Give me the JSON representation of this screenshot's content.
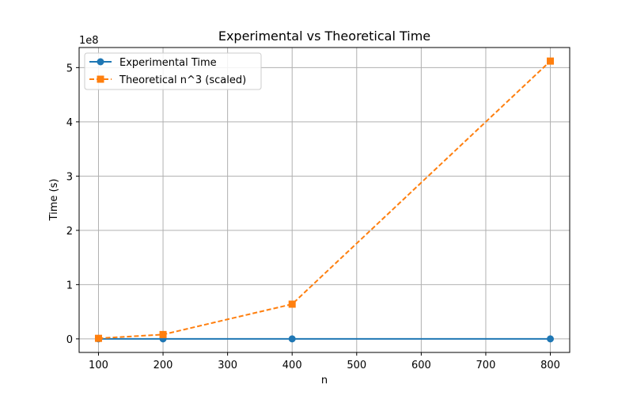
{
  "chart_data": {
    "type": "line",
    "title": "Experimental vs Theoretical Time",
    "xlabel": "n",
    "ylabel": "Time (s)",
    "y_offset_label": "1e8",
    "xlim": [
      70,
      830
    ],
    "ylim": [
      -25000000,
      537000000
    ],
    "x_ticks": [
      100,
      200,
      300,
      400,
      500,
      600,
      700,
      800
    ],
    "y_ticks": [
      0,
      100000000,
      200000000,
      300000000,
      400000000,
      500000000
    ],
    "y_tick_labels": [
      "0",
      "1",
      "2",
      "3",
      "4",
      "5"
    ],
    "grid": true,
    "legend_position": "top-left",
    "x": [
      100,
      200,
      400,
      800
    ],
    "series": [
      {
        "name": "Experimental Time",
        "values": [
          0,
          0,
          0,
          0
        ],
        "color": "#1f77b4",
        "marker": "circle",
        "line_style": "solid"
      },
      {
        "name": "Theoretical n^3 (scaled)",
        "values": [
          1000000,
          8000000,
          64000000,
          512000000
        ],
        "color": "#ff7f0e",
        "marker": "square",
        "line_style": "dashed"
      }
    ]
  }
}
